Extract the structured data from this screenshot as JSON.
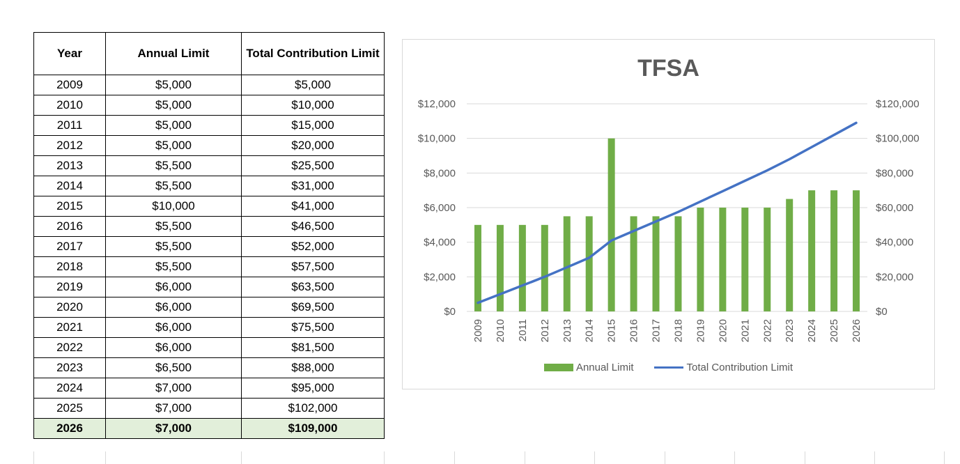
{
  "table": {
    "headers": [
      "Year",
      "Annual Limit",
      "Total Contribution Limit"
    ],
    "rows": [
      [
        "2009",
        "$5,000",
        "$5,000"
      ],
      [
        "2010",
        "$5,000",
        "$10,000"
      ],
      [
        "2011",
        "$5,000",
        "$15,000"
      ],
      [
        "2012",
        "$5,000",
        "$20,000"
      ],
      [
        "2013",
        "$5,500",
        "$25,500"
      ],
      [
        "2014",
        "$5,500",
        "$31,000"
      ],
      [
        "2015",
        "$10,000",
        "$41,000"
      ],
      [
        "2016",
        "$5,500",
        "$46,500"
      ],
      [
        "2017",
        "$5,500",
        "$52,000"
      ],
      [
        "2018",
        "$5,500",
        "$57,500"
      ],
      [
        "2019",
        "$6,000",
        "$63,500"
      ],
      [
        "2020",
        "$6,000",
        "$69,500"
      ],
      [
        "2021",
        "$6,000",
        "$75,500"
      ],
      [
        "2022",
        "$6,000",
        "$81,500"
      ],
      [
        "2023",
        "$6,500",
        "$88,000"
      ],
      [
        "2024",
        "$7,000",
        "$95,000"
      ],
      [
        "2025",
        "$7,000",
        "$102,000"
      ],
      [
        "2026",
        "$7,000",
        "$109,000"
      ]
    ],
    "highlight_color": "#e2efda"
  },
  "chart_data": {
    "type": "bar",
    "title": "TFSA",
    "categories": [
      "2009",
      "2010",
      "2011",
      "2012",
      "2013",
      "2014",
      "2015",
      "2016",
      "2017",
      "2018",
      "2019",
      "2020",
      "2021",
      "2022",
      "2023",
      "2024",
      "2025",
      "2026"
    ],
    "series": [
      {
        "name": "Annual Limit",
        "type": "bar",
        "axis": "left",
        "color": "#70ad47",
        "values": [
          5000,
          5000,
          5000,
          5000,
          5500,
          5500,
          10000,
          5500,
          5500,
          5500,
          6000,
          6000,
          6000,
          6000,
          6500,
          7000,
          7000,
          7000
        ]
      },
      {
        "name": "Total Contribution Limit",
        "type": "line",
        "axis": "right",
        "color": "#4472c4",
        "values": [
          5000,
          10000,
          15000,
          20000,
          25500,
          31000,
          41000,
          46500,
          52000,
          57500,
          63500,
          69500,
          75500,
          81500,
          88000,
          95000,
          102000,
          109000
        ]
      }
    ],
    "y_left": {
      "min": 0,
      "max": 12000,
      "ticks": [
        "$0",
        "$2,000",
        "$4,000",
        "$6,000",
        "$8,000",
        "$10,000",
        "$12,000"
      ]
    },
    "y_right": {
      "min": 0,
      "max": 120000,
      "ticks": [
        "$0",
        "$20,000",
        "$40,000",
        "$60,000",
        "$80,000",
        "$100,000",
        "$120,000"
      ]
    },
    "grid": true,
    "legend_position": "bottom"
  }
}
